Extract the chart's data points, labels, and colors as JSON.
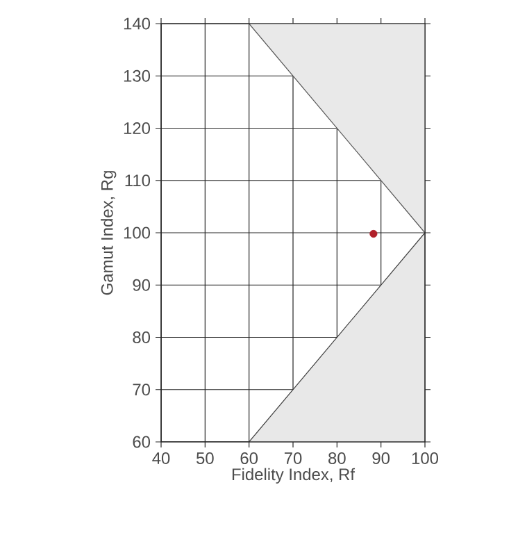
{
  "chart_data": {
    "type": "scatter",
    "xlabel": "Fidelity Index, Rf",
    "ylabel": "Gamut Index, Rg",
    "xlim": [
      40,
      100
    ],
    "ylim": [
      60,
      140
    ],
    "xticks": [
      40,
      50,
      60,
      70,
      80,
      90,
      100
    ],
    "yticks": [
      60,
      70,
      80,
      90,
      100,
      110,
      120,
      130,
      140
    ],
    "grid": true,
    "series": [
      {
        "type": "line",
        "color": "#555555",
        "marker": "none",
        "x": [
          60,
          100
        ],
        "values": [
          140,
          100
        ],
        "lower": [
          140,
          100
        ],
        "upper": [
          140,
          140
        ]
      },
      {
        "type": "area",
        "color": "#e8e8e8",
        "marker": "none",
        "x": [
          60,
          100
        ],
        "values": [
          60,
          100
        ]
      },
      {
        "color": "#b0202a",
        "marker": "circle",
        "x": [
          88.3
        ],
        "values": [
          99.8
        ]
      }
    ]
  }
}
